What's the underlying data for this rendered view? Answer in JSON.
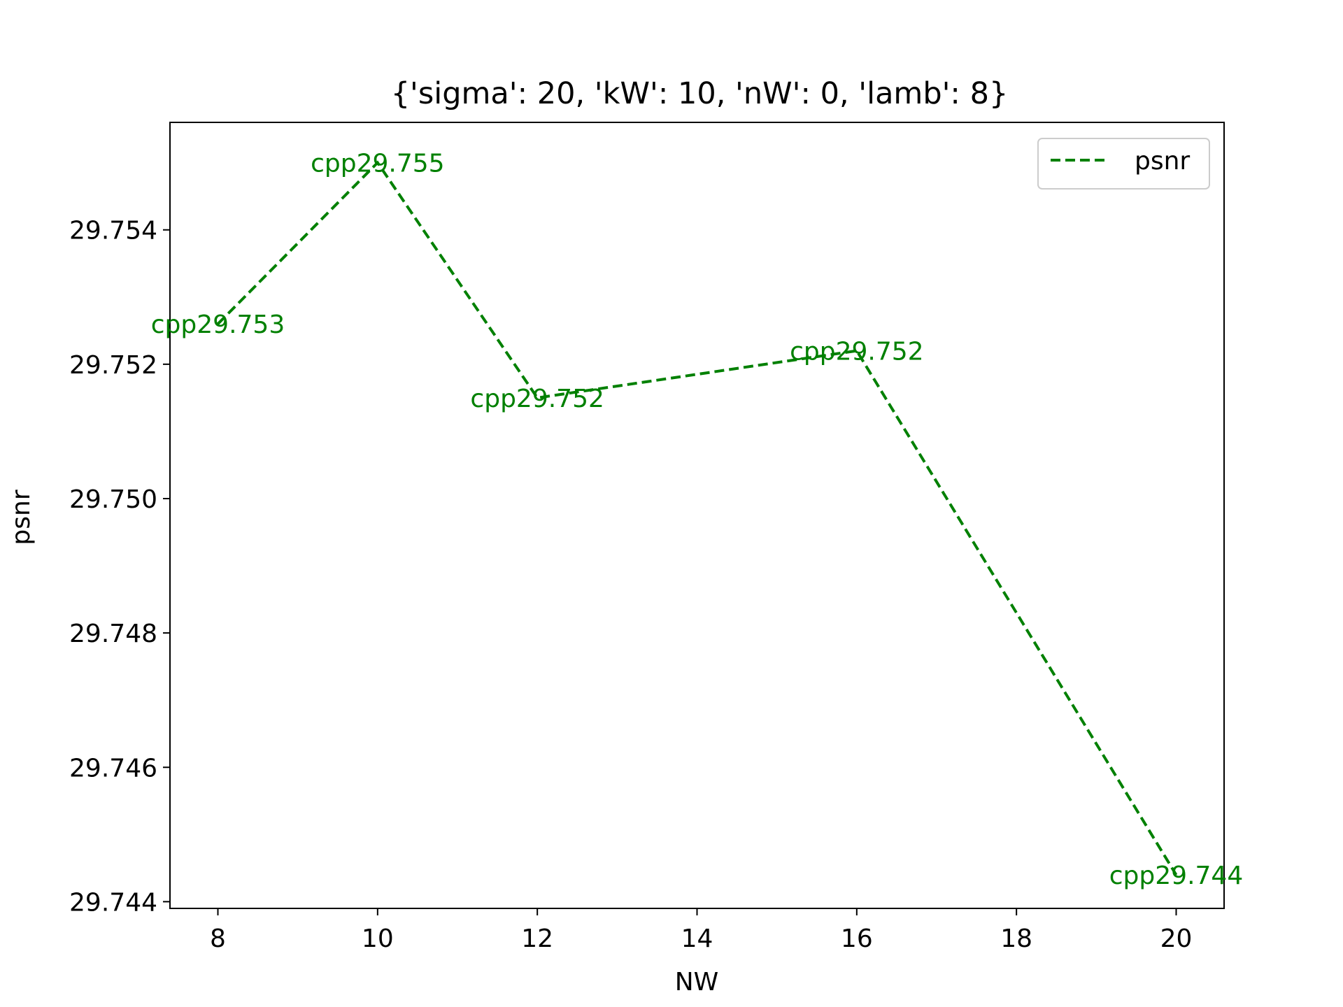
{
  "chart_data": {
    "type": "line",
    "title": "{'sigma': 20, 'kW': 10, 'nW': 0, 'lamb': 8}",
    "xlabel": "NW",
    "ylabel": "psnr",
    "xlim": [
      7.4,
      20.6
    ],
    "ylim": [
      29.7439,
      29.7556
    ],
    "xticks": [
      8,
      10,
      12,
      14,
      16,
      18,
      20
    ],
    "xtick_labels": [
      "8",
      "10",
      "12",
      "14",
      "16",
      "18",
      "20"
    ],
    "yticks": [
      29.744,
      29.746,
      29.748,
      29.75,
      29.752,
      29.754
    ],
    "ytick_labels": [
      "29.744",
      "29.746",
      "29.748",
      "29.750",
      "29.752",
      "29.754"
    ],
    "grid": false,
    "legend_position": "top-right",
    "series": [
      {
        "name": "psnr",
        "color": "#008000",
        "line_style": "dashed",
        "x": [
          8,
          10,
          12,
          16,
          20
        ],
        "y": [
          29.7526,
          29.755,
          29.7515,
          29.7522,
          29.7444
        ],
        "labels": [
          "cpp29.753",
          "cpp29.755",
          "cpp29.752",
          "cpp29.752",
          "cpp29.744"
        ]
      }
    ]
  }
}
